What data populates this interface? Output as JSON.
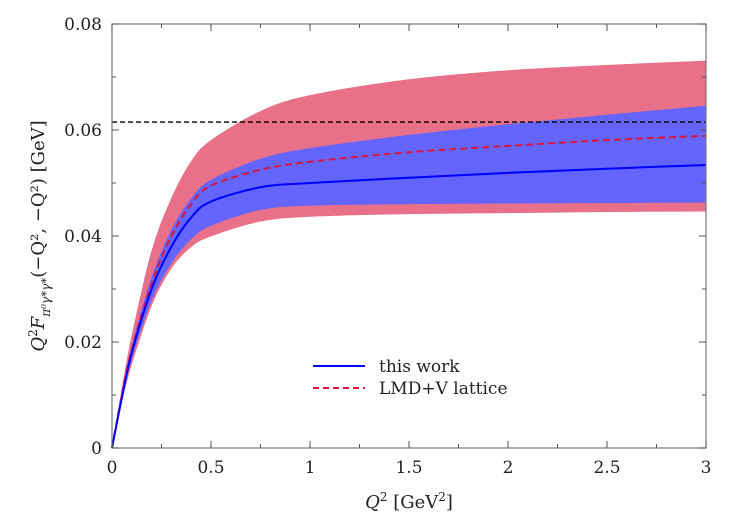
{
  "chart_data": {
    "type": "line",
    "title": "",
    "xlabel": "Q² [GeV²]",
    "ylabel": "Q² F_{π⁰γ*γ*}(−Q², −Q²) [GeV]",
    "xlabel_parts": {
      "q": "Q",
      "sup": "2",
      "unit": " [GeV",
      "unit_sup": "2",
      "unit_end": "]"
    },
    "ylabel_parts": {
      "q": "Q",
      "sup": "2",
      "f": "F",
      "sub": "π⁰γ*γ*",
      "args": "(−Q², −Q²) [GeV]"
    },
    "xlim": [
      0,
      3
    ],
    "ylim": [
      0,
      0.08
    ],
    "xticks": [
      "0",
      "0.5",
      "1",
      "1.5",
      "2",
      "2.5",
      "3"
    ],
    "yticks": [
      "0",
      "0.02",
      "0.04",
      "0.06",
      "0.08"
    ],
    "grid": false,
    "legend_placement": "bottom-center",
    "x": [
      0,
      0.05,
      0.1,
      0.2,
      0.3,
      0.4,
      0.5,
      0.75,
      1,
      1.5,
      2,
      2.5,
      3
    ],
    "series": [
      {
        "name": "this work",
        "style": "solid",
        "color": "#0000ff",
        "band_color": "#6464ff",
        "values": [
          0,
          0.0095,
          0.018,
          0.03,
          0.038,
          0.0435,
          0.0465,
          0.0492,
          0.05,
          0.051,
          0.0519,
          0.0527,
          0.0534
        ],
        "upper": [
          0,
          0.01,
          0.019,
          0.032,
          0.041,
          0.047,
          0.0505,
          0.0545,
          0.0565,
          0.059,
          0.061,
          0.0628,
          0.0645
        ],
        "lower": [
          0,
          0.009,
          0.017,
          0.028,
          0.035,
          0.0395,
          0.042,
          0.045,
          0.0458,
          0.0461,
          0.0462,
          0.0463,
          0.0464
        ]
      },
      {
        "name": "LMD+V lattice",
        "style": "dashed",
        "color": "#dc143c",
        "band_color": "#e87088",
        "values": [
          0,
          0.01,
          0.0185,
          0.031,
          0.04,
          0.046,
          0.0495,
          0.0525,
          0.054,
          0.0558,
          0.057,
          0.0581,
          0.0589
        ],
        "upper": [
          0,
          0.011,
          0.021,
          0.037,
          0.047,
          0.054,
          0.058,
          0.0635,
          0.0665,
          0.0695,
          0.0712,
          0.0722,
          0.073
        ],
        "lower": [
          0,
          0.009,
          0.016,
          0.027,
          0.034,
          0.038,
          0.04,
          0.0428,
          0.0437,
          0.0442,
          0.0444,
          0.0446,
          0.0447
        ]
      }
    ],
    "reference_line": {
      "y": 0.0615,
      "style": "dashed",
      "color": "#000000"
    }
  }
}
